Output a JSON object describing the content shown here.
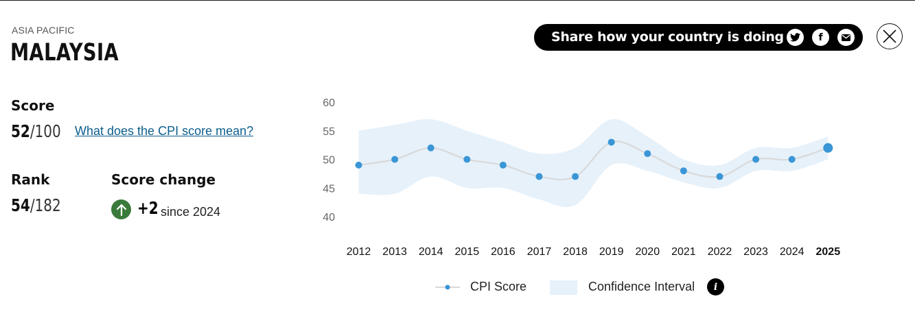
{
  "header": {
    "region": "ASIA PACIFIC",
    "country": "MALAYSIA"
  },
  "share": {
    "text": "Share how your country is doing",
    "buttons": [
      {
        "icon": "twitter-icon"
      },
      {
        "icon": "facebook-icon",
        "glyph": "f"
      },
      {
        "icon": "email-icon"
      }
    ]
  },
  "close": {
    "icon": "close-icon"
  },
  "score": {
    "label": "Score",
    "value": "52",
    "max": "/100",
    "link_text": "What does the CPI score mean?"
  },
  "rank": {
    "label": "Rank",
    "value": "54",
    "max": "/182"
  },
  "score_change": {
    "label": "Score change",
    "value": "+2",
    "since": "since 2024",
    "direction": "up",
    "color": "#3a7a3a"
  },
  "legend": {
    "cpi": "CPI Score",
    "ci": "Confidence Interval",
    "info_glyph": "i"
  },
  "chart_data": {
    "type": "line",
    "x": [
      "2012",
      "2013",
      "2014",
      "2015",
      "2016",
      "2017",
      "2018",
      "2019",
      "2020",
      "2021",
      "2022",
      "2023",
      "2024",
      "2025"
    ],
    "highlight_x": "2025",
    "series": [
      {
        "name": "CPI Score",
        "values": [
          49,
          50,
          52,
          50,
          49,
          47,
          47,
          53,
          51,
          48,
          47,
          50,
          50,
          52
        ],
        "color": "#3a96d6"
      }
    ],
    "confidence_interval": {
      "name": "Confidence Interval",
      "lower": [
        44,
        44,
        47,
        45,
        45,
        43,
        42,
        49,
        48,
        46,
        45,
        48,
        48,
        50
      ],
      "upper": [
        55,
        56,
        57,
        55,
        53,
        51,
        52,
        57,
        54,
        50,
        49,
        52,
        52,
        54
      ],
      "color": "#e6f1fa"
    },
    "yticks": [
      40,
      45,
      50,
      55,
      60
    ],
    "ylim": [
      40,
      60
    ],
    "line_color": "#d9d9d9"
  }
}
